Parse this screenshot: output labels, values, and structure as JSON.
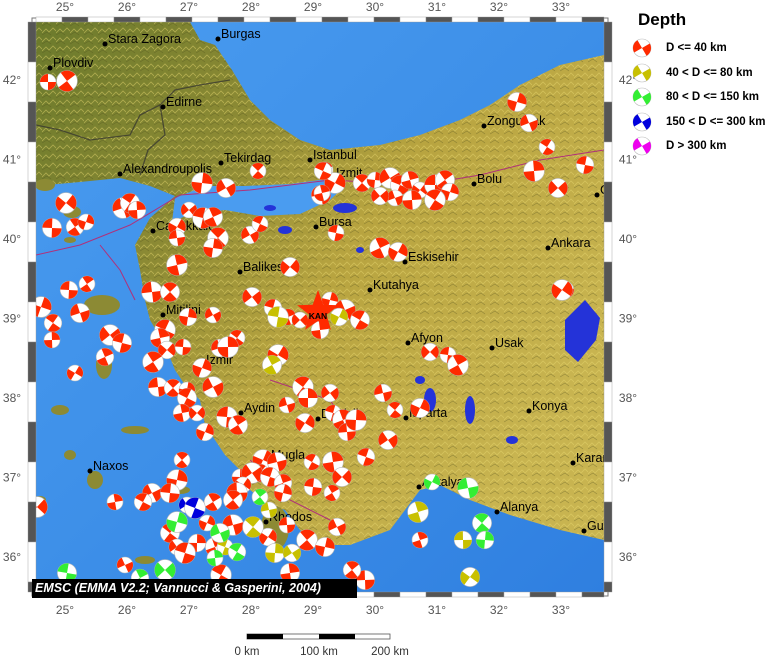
{
  "legend": {
    "title": "Depth",
    "items": [
      {
        "label": "D <= 40 km",
        "color": "#ff2a00"
      },
      {
        "label": "40 < D <= 80 km",
        "color": "#c8c000"
      },
      {
        "label": "80 < D <= 150 km",
        "color": "#33ee33"
      },
      {
        "label": "150 < D <= 300 km",
        "color": "#0000dd"
      },
      {
        "label": "D > 300 km",
        "color": "#ee00ee"
      }
    ]
  },
  "axes": {
    "longitude_labels": [
      "25°",
      "26°",
      "27°",
      "28°",
      "29°",
      "30°",
      "31°",
      "32°",
      "33°"
    ],
    "latitude_labels": [
      "42°",
      "41°",
      "40°",
      "39°",
      "38°",
      "37°",
      "36°"
    ]
  },
  "cities": [
    "Stara Zagora",
    "Burgas",
    "Plovdiv",
    "Edirne",
    "Alexandroupolis",
    "Tekirdag",
    "Istanbul",
    "Canakkale",
    "Izmit",
    "Bolu",
    "Zonguldak",
    "Bursa",
    "Balikesir",
    "Eskisehir",
    "Kutahya",
    "Ankara",
    "Mitilini",
    "Izmir",
    "Aydin",
    "Denizli",
    "Mugla",
    "Naxos",
    "Rhodos",
    "Afyon",
    "Usak",
    "Isparta",
    "Konya",
    "Antalya",
    "Alanya",
    "Karaman",
    "Gulnar",
    "Cankiri"
  ],
  "epicenter_marker": {
    "label": "KAN",
    "color": "#ff2a00"
  },
  "credit": "EMSC (EMMA V2.2; Vannucci & Gasperini, 2004)",
  "scale_bar": {
    "labels": [
      "0 km",
      "100 km",
      "200 km"
    ]
  },
  "colors": {
    "sea": "#3d8fe8",
    "land_low": "#5d7a2c",
    "land_high": "#c4b04a",
    "faults": "#b0307a"
  }
}
